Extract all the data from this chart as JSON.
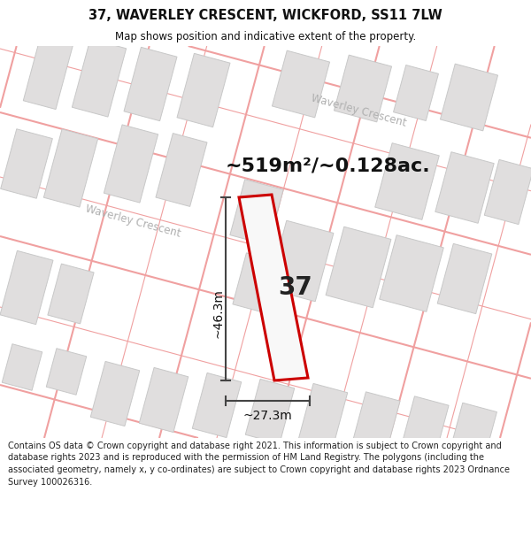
{
  "title": "37, WAVERLEY CRESCENT, WICKFORD, SS11 7LW",
  "subtitle": "Map shows position and indicative extent of the property.",
  "area_label": "~519m²/~0.128ac.",
  "number_label": "37",
  "dim_height": "~46.3m",
  "dim_width": "~27.3m",
  "footer": "Contains OS data © Crown copyright and database right 2021. This information is subject to Crown copyright and database rights 2023 and is reproduced with the permission of HM Land Registry. The polygons (including the associated geometry, namely x, y co-ordinates) are subject to Crown copyright and database rights 2023 Ordnance Survey 100026316.",
  "map_bg": "#faf8f8",
  "road_line_color": "#f0a0a0",
  "building_fill": "#e0dede",
  "building_edge": "#c8c8c8",
  "property_fill": "#f8f8f8",
  "property_edge": "#cc0000",
  "dim_color": "#444444",
  "street_label_color": "#b0b0b0",
  "title_color": "#111111",
  "footer_color": "#222222"
}
